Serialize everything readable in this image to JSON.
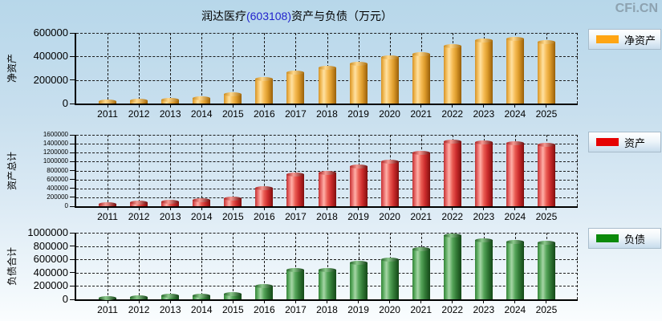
{
  "watermark": "CFi.CN",
  "title": {
    "company": "润达医疗",
    "code": "(603108)",
    "suffix": "资产与负债（万元）"
  },
  "chart_data": [
    {
      "type": "bar",
      "title": "净资产",
      "ylabel": "净资产",
      "legend": "净资产",
      "legend_swatch_color": "#ffa513",
      "color_scheme": "orange",
      "grid": true,
      "legend_position": "right",
      "ylim": [
        0,
        600000
      ],
      "y_ticks": [
        "0",
        "200000",
        "400000",
        "600000"
      ],
      "categories": [
        "2011",
        "2012",
        "2013",
        "2014",
        "2015",
        "2016",
        "2017",
        "2018",
        "2019",
        "2020",
        "2021",
        "2022",
        "2023",
        "2024",
        "2025"
      ],
      "values": [
        22000,
        30000,
        37000,
        46000,
        80000,
        214000,
        266000,
        305000,
        340000,
        395000,
        425000,
        493000,
        539000,
        551000,
        528000
      ]
    },
    {
      "type": "bar",
      "title": "资产",
      "ylabel": "资产总计",
      "legend": "资产",
      "legend_swatch_color": "#e60202",
      "color_scheme": "red",
      "grid": true,
      "legend_position": "right",
      "ylim": [
        0,
        1600000
      ],
      "y_ticks": [
        "0",
        "200000",
        "400000",
        "600000",
        "800000",
        "1000000",
        "1200000",
        "1400000",
        "1600000"
      ],
      "categories": [
        "2011",
        "2012",
        "2013",
        "2014",
        "2015",
        "2016",
        "2017",
        "2018",
        "2019",
        "2020",
        "2021",
        "2022",
        "2023",
        "2024",
        "2025"
      ],
      "values": [
        50000,
        85000,
        115000,
        135000,
        180000,
        405000,
        715000,
        760000,
        890000,
        1000000,
        1200000,
        1460000,
        1435000,
        1420000,
        1390000
      ]
    },
    {
      "type": "bar",
      "title": "负债",
      "ylabel": "负债合计",
      "legend": "负债",
      "legend_swatch_color": "#0b8a0b",
      "color_scheme": "green",
      "grid": true,
      "legend_position": "right",
      "ylim": [
        0,
        1000000
      ],
      "y_ticks": [
        "0",
        "200000",
        "400000",
        "600000",
        "800000",
        "1000000"
      ],
      "categories": [
        "2011",
        "2012",
        "2013",
        "2014",
        "2015",
        "2016",
        "2017",
        "2018",
        "2019",
        "2020",
        "2021",
        "2022",
        "2023",
        "2024",
        "2025"
      ],
      "values": [
        12000,
        42000,
        55000,
        62000,
        90000,
        200000,
        450000,
        440000,
        552000,
        600000,
        760000,
        960000,
        892000,
        865000,
        856000
      ]
    }
  ]
}
